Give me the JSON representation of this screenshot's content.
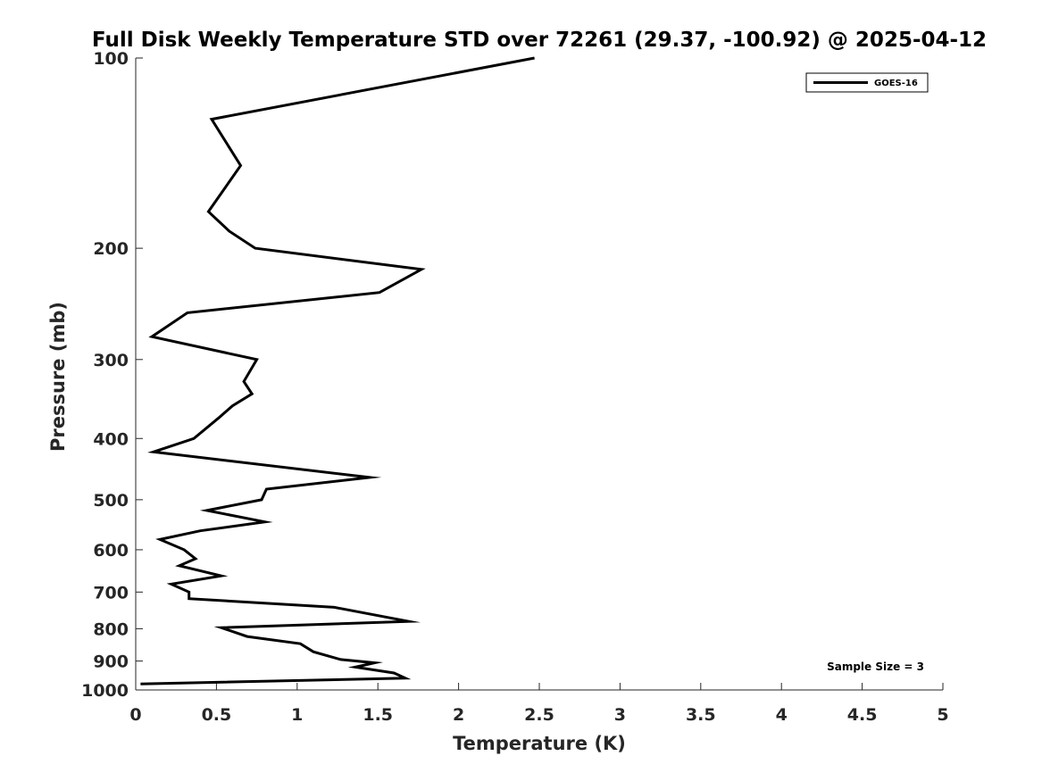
{
  "chart_data": {
    "type": "line",
    "title": "Full Disk Weekly Temperature STD over 72261 (29.37, -100.92) @ 2025-04-12",
    "xlabel": "Temperature (K)",
    "ylabel": "Pressure (mb)",
    "xlim": [
      0,
      5
    ],
    "ylim": [
      100,
      1000
    ],
    "yscale": "log",
    "y_reversed": true,
    "xticks": [
      0,
      0.5,
      1,
      1.5,
      2,
      2.5,
      3,
      3.5,
      4,
      4.5,
      5
    ],
    "xtick_labels": [
      "0",
      "0.5",
      "1",
      "1.5",
      "2",
      "2.5",
      "3",
      "3.5",
      "4",
      "4.5",
      "5"
    ],
    "yticks": [
      100,
      200,
      300,
      400,
      500,
      600,
      700,
      800,
      900,
      1000
    ],
    "ytick_labels": [
      "100",
      "200",
      "300",
      "400",
      "500",
      "600",
      "700",
      "800",
      "900",
      "1000"
    ],
    "grid": false,
    "legend_position": "top-right",
    "series": [
      {
        "name": "GOES-16",
        "color": "#000000",
        "x": [
          2.47,
          0.47,
          0.65,
          0.45,
          0.58,
          0.74,
          1.77,
          1.51,
          0.32,
          0.1,
          0.75,
          0.67,
          0.72,
          0.6,
          0.52,
          0.36,
          0.11,
          1.45,
          0.81,
          0.78,
          0.44,
          0.8,
          0.4,
          0.15,
          0.3,
          0.37,
          0.27,
          0.53,
          0.22,
          0.33,
          0.33,
          1.23,
          1.69,
          0.53,
          0.69,
          1.02,
          1.1,
          1.27,
          1.48,
          1.36,
          1.6,
          1.67,
          0.03
        ],
        "y": [
          100,
          125,
          148,
          175,
          188,
          200,
          216,
          235,
          253,
          276,
          300,
          325,
          340,
          355,
          370,
          400,
          420,
          461,
          481,
          500,
          520,
          542,
          560,
          578,
          600,
          620,
          636,
          660,
          680,
          700,
          717,
          740,
          779,
          797,
          823,
          845,
          870,
          895,
          906,
          920,
          940,
          958,
          978
        ]
      }
    ],
    "annotations": [
      "Sample Size = 3"
    ]
  }
}
